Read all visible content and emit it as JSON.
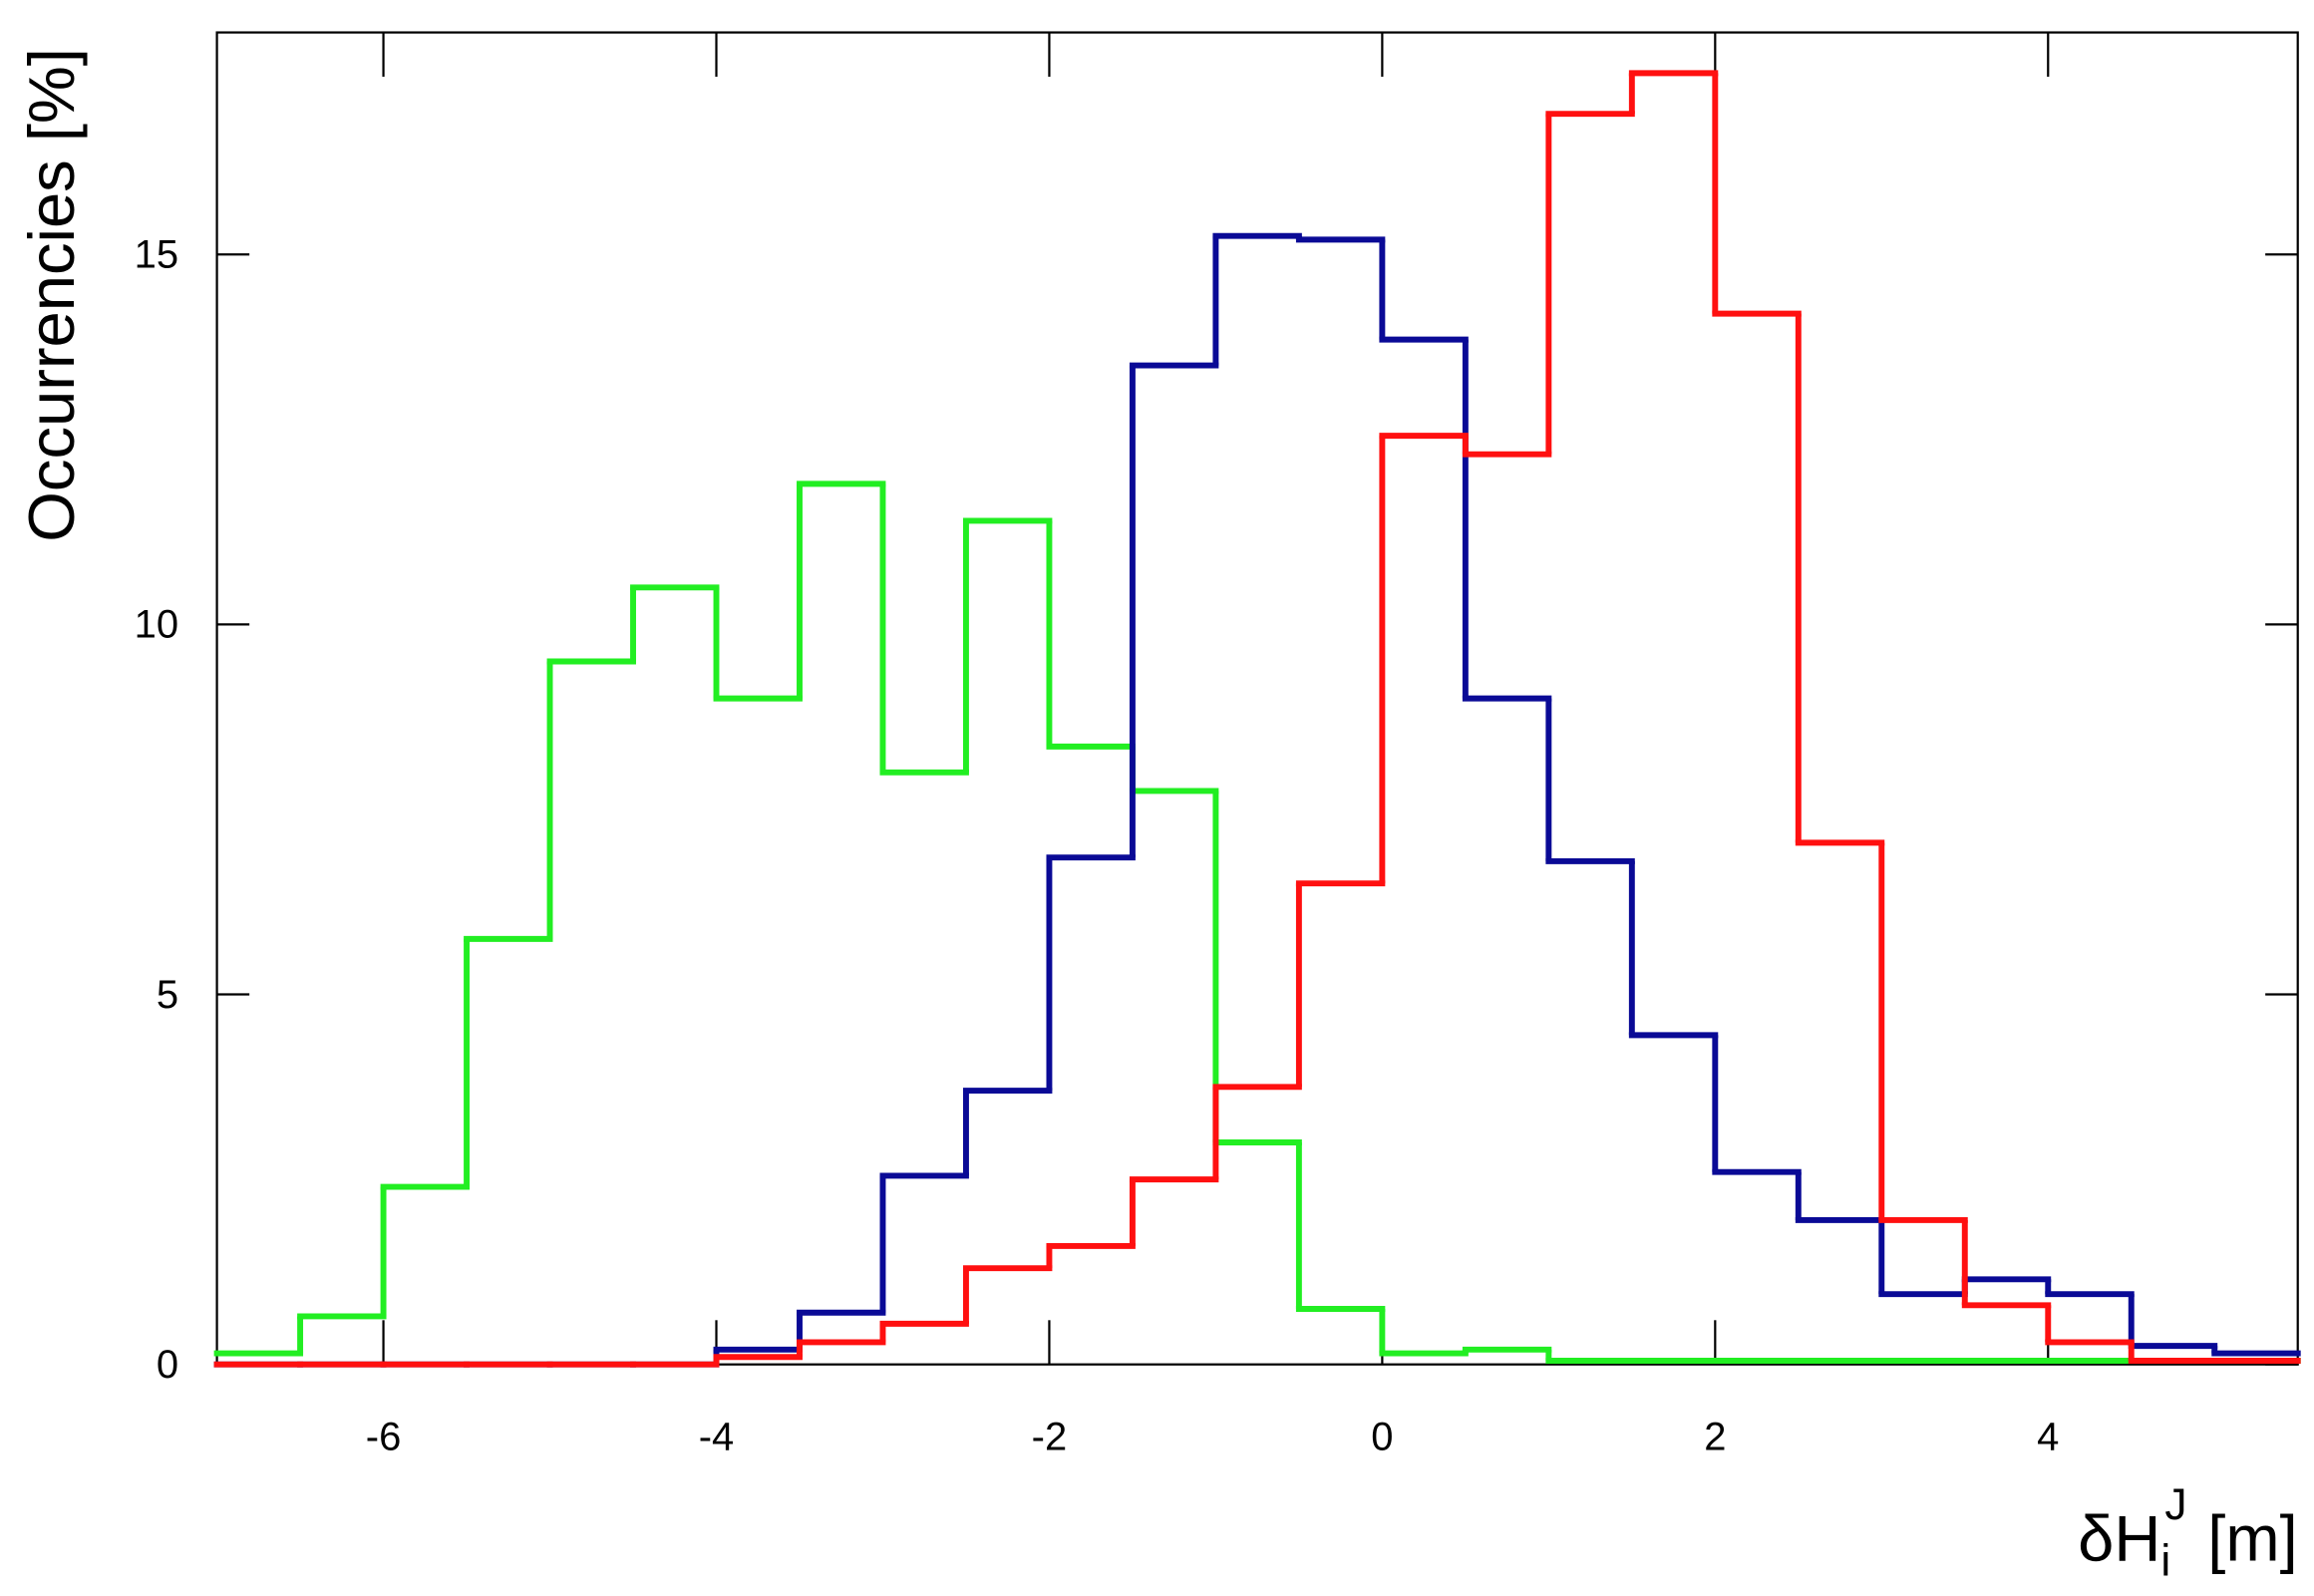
{
  "chart_data": {
    "type": "histogram",
    "y_label": "Occurrencies [%]",
    "x_label": {
      "base": "δH",
      "sub": "i",
      "sup": "J",
      "unit": "[m]"
    },
    "bins": [
      -7,
      -6.5,
      -6,
      -5.5,
      -5,
      -4.5,
      -4,
      -3.5,
      -3,
      -2.5,
      -2,
      -1.5,
      -1,
      -0.5,
      0,
      0.5,
      1,
      1.5,
      2,
      2.5,
      3,
      3.5,
      4,
      4.5,
      5,
      5.5
    ],
    "series": [
      {
        "color": "#22ee22",
        "values": [
          0.15,
          0.65,
          2.4,
          5.75,
          9.5,
          10.5,
          9.0,
          11.9,
          8.0,
          11.4,
          8.35,
          7.75,
          3.0,
          0.75,
          0.15,
          0.2,
          0.05,
          0.05,
          0.05,
          0.05,
          0.05,
          0.05,
          0.05,
          0.05,
          0.05
        ]
      },
      {
        "color": "#0a0a96",
        "values": [
          0,
          0,
          0,
          0,
          0,
          0,
          0.2,
          0.7,
          2.55,
          3.7,
          6.85,
          13.5,
          15.25,
          15.2,
          13.85,
          9.0,
          6.8,
          4.45,
          2.6,
          1.95,
          0.95,
          1.15,
          0.95,
          0.25,
          0.15
        ]
      },
      {
        "color": "#ff1010",
        "values": [
          0,
          0,
          0,
          0,
          0,
          0,
          0.1,
          0.3,
          0.55,
          1.3,
          1.6,
          2.5,
          3.75,
          6.5,
          12.55,
          12.3,
          16.9,
          17.45,
          14.2,
          7.05,
          1.95,
          0.8,
          0.3,
          0.05,
          0.05
        ]
      }
    ],
    "xlim": [
      -7,
      5.5
    ],
    "ylim": [
      0,
      18
    ],
    "xticks": [
      -6,
      -4,
      -2,
      0,
      2,
      4
    ],
    "yticks": [
      0,
      5,
      10,
      15
    ]
  }
}
